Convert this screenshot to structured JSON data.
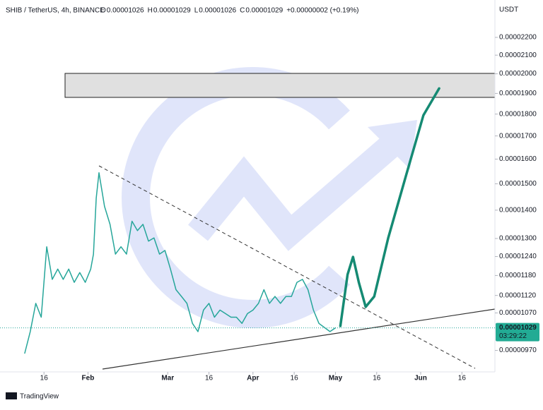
{
  "header": {
    "symbol": "SHIB / TetherUS, 4h, BINANCE",
    "ohlc": [
      {
        "label": "O",
        "value": "0.00001026"
      },
      {
        "label": "H",
        "value": "0.00001029"
      },
      {
        "label": "L",
        "value": "0.00001026"
      },
      {
        "label": "C",
        "value": "0.00001029"
      }
    ],
    "change": "+0.00000002 (+0.19%)"
  },
  "chart_data": {
    "type": "line",
    "y_axis_unit": "USDT",
    "log_scale": true,
    "xlim": [
      0,
      180
    ],
    "xticks": [
      {
        "value": 16,
        "label": "16"
      },
      {
        "value": 32,
        "label": "Feb"
      },
      {
        "value": 61,
        "label": "Mar"
      },
      {
        "value": 76,
        "label": "16"
      },
      {
        "value": 92,
        "label": "Apr"
      },
      {
        "value": 107,
        "label": "16"
      },
      {
        "value": 122,
        "label": "May"
      },
      {
        "value": 137,
        "label": "16"
      },
      {
        "value": 153,
        "label": "Jun"
      },
      {
        "value": 168,
        "label": "16"
      }
    ],
    "ylim": [
      9.17e-06,
      2.426e-05
    ],
    "yticks": [
      {
        "value": 2.2e-05,
        "label": "0.00002200"
      },
      {
        "value": 2.1e-05,
        "label": "0.00002100"
      },
      {
        "value": 2e-05,
        "label": "0.00002000"
      },
      {
        "value": 1.9e-05,
        "label": "0.00001900"
      },
      {
        "value": 1.8e-05,
        "label": "0.00001800"
      },
      {
        "value": 1.7e-05,
        "label": "0.00001700"
      },
      {
        "value": 1.6e-05,
        "label": "0.00001600"
      },
      {
        "value": 1.5e-05,
        "label": "0.00001500"
      },
      {
        "value": 1.4e-05,
        "label": "0.00001400"
      },
      {
        "value": 1.3e-05,
        "label": "0.00001300"
      },
      {
        "value": 1.24e-05,
        "label": "0.00001240"
      },
      {
        "value": 1.18e-05,
        "label": "0.00001180"
      },
      {
        "value": 1.12e-05,
        "label": "0.00001120"
      },
      {
        "value": 1.07e-05,
        "label": "0.00001070"
      },
      {
        "value": 9.7e-06,
        "label": "0.00000970"
      }
    ],
    "series": [
      {
        "color": "#26a69a",
        "x": [
          9,
          11,
          13,
          15,
          17,
          19,
          21,
          23,
          25,
          27,
          29,
          31,
          33,
          34,
          35,
          36,
          38,
          40,
          42,
          44,
          46,
          48,
          50,
          52,
          54,
          56,
          58,
          60,
          62,
          64,
          66,
          68,
          70,
          72,
          74,
          76,
          78,
          80,
          82,
          84,
          86,
          88,
          90,
          92,
          94,
          96,
          98,
          100,
          102,
          104,
          106,
          108,
          110,
          112,
          114,
          116,
          118,
          120,
          122
        ],
        "values": [
          9.63e-06,
          1.019e-05,
          1.097e-05,
          1.058e-05,
          1.272e-05,
          1.168e-05,
          1.2e-05,
          1.168e-05,
          1.2e-05,
          1.159e-05,
          1.189e-05,
          1.159e-05,
          1.2e-05,
          1.248e-05,
          1.445e-05,
          1.544e-05,
          1.414e-05,
          1.349e-05,
          1.248e-05,
          1.272e-05,
          1.248e-05,
          1.36e-05,
          1.327e-05,
          1.349e-05,
          1.291e-05,
          1.302e-05,
          1.248e-05,
          1.26e-05,
          1.2e-05,
          1.137e-05,
          1.117e-05,
          1.097e-05,
          1.041e-05,
          1.019e-05,
          1.078e-05,
          1.097e-05,
          1.058e-05,
          1.078e-05,
          1.068e-05,
          1.058e-05,
          1.058e-05,
          1.041e-05,
          1.068e-05,
          1.078e-05,
          1.097e-05,
          1.137e-05,
          1.097e-05,
          1.117e-05,
          1.097e-05,
          1.117e-05,
          1.117e-05,
          1.159e-05,
          1.168e-05,
          1.137e-05,
          1.078e-05,
          1.041e-05,
          1.03e-05,
          1.019e-05,
          1.029e-05
        ]
      },
      {
        "color": "#158a73",
        "x": [
          123.8,
          126.4,
          128.4,
          130.5,
          133,
          136.1,
          141.2,
          147.6,
          154,
          159.7
        ],
        "values": [
          1.034e-05,
          1.183e-05,
          1.239e-05,
          1.159e-05,
          1.087e-05,
          1.117e-05,
          1.302e-05,
          1.53e-05,
          1.795e-05,
          1.925e-05
        ]
      }
    ],
    "last_price": {
      "value": 1.029e-05,
      "label": "0.00001029"
    },
    "countdown": "03:29:22"
  },
  "footer": "TradingView"
}
